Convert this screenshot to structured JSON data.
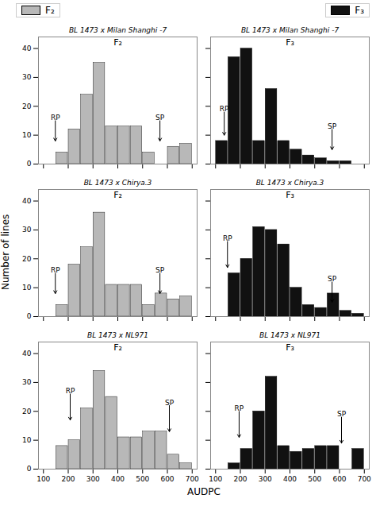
{
  "chart_data": {
    "type": "bar",
    "xlabel": "AUDPC",
    "ylabel": "Number of lines",
    "legend": "top",
    "bins": [
      100,
      150,
      200,
      250,
      300,
      350,
      400,
      450,
      500,
      550,
      600,
      650,
      700
    ],
    "xlim": [
      80,
      720
    ],
    "xticks": [
      100,
      200,
      300,
      400,
      500,
      600,
      700
    ],
    "ylim": [
      0,
      44
    ],
    "yticks": [
      0,
      10,
      20,
      30,
      40
    ],
    "panels": [
      {
        "title": "BL 1473 x Milan Shanghi -7",
        "name": "F₂",
        "color": "#b8b8b8",
        "tick_labels": "y",
        "values": [
          0,
          4,
          12,
          24,
          35,
          13,
          13,
          13,
          4,
          0,
          6,
          7
        ],
        "annotations": [
          {
            "text": "RP",
            "x": 148,
            "y": 15,
            "arrow_y": 8
          },
          {
            "text": "SP",
            "x": 570,
            "y": 15,
            "arrow_y": 8
          }
        ]
      },
      {
        "title": "BL 1473 x Milan Shanghi -7",
        "name": "F₃",
        "color": "#111111",
        "tick_labels": false,
        "values": [
          8,
          37,
          40,
          8,
          26,
          8,
          5,
          3,
          2,
          1,
          1,
          0
        ],
        "annotations": [
          {
            "text": "RP",
            "x": 135,
            "y": 18,
            "arrow_y": 10
          },
          {
            "text": "SP",
            "x": 570,
            "y": 12,
            "arrow_y": 5
          }
        ]
      },
      {
        "title": "BL 1473 x Chirya.3",
        "name": "F₂",
        "color": "#b8b8b8",
        "tick_labels": "y",
        "values": [
          0,
          4,
          18,
          24,
          36,
          11,
          11,
          11,
          4,
          8,
          6,
          7
        ],
        "annotations": [
          {
            "text": "RP",
            "x": 148,
            "y": 15,
            "arrow_y": 8
          },
          {
            "text": "SP",
            "x": 570,
            "y": 15,
            "arrow_y": 8
          }
        ]
      },
      {
        "title": "BL 1473 x Chirya.3",
        "name": "F₃",
        "color": "#111111",
        "tick_labels": false,
        "values": [
          0,
          15,
          20,
          31,
          30,
          25,
          10,
          4,
          3,
          8,
          2,
          1
        ],
        "annotations": [
          {
            "text": "RP",
            "x": 148,
            "y": 26,
            "arrow_y": 17
          },
          {
            "text": "SP",
            "x": 570,
            "y": 12,
            "arrow_y": 5
          }
        ]
      },
      {
        "title": "BL 1473 x NL971",
        "name": "F₂",
        "color": "#b8b8b8",
        "values": [
          0,
          8,
          10,
          21,
          34,
          25,
          11,
          11,
          13,
          13,
          5,
          2
        ],
        "annotations": [
          {
            "text": "RP",
            "x": 208,
            "y": 26,
            "arrow_y": 17
          },
          {
            "text": "SP",
            "x": 608,
            "y": 22,
            "arrow_y": 13
          }
        ]
      },
      {
        "title": "BL 1473 x NL971",
        "name": "F₃",
        "color": "#111111",
        "tick_labels": "x",
        "values": [
          0,
          2,
          7,
          20,
          32,
          8,
          6,
          7,
          8,
          8,
          0,
          7
        ],
        "annotations": [
          {
            "text": "RP",
            "x": 195,
            "y": 20,
            "arrow_y": 11
          },
          {
            "text": "SP",
            "x": 608,
            "y": 18,
            "arrow_y": 9
          }
        ]
      }
    ]
  }
}
